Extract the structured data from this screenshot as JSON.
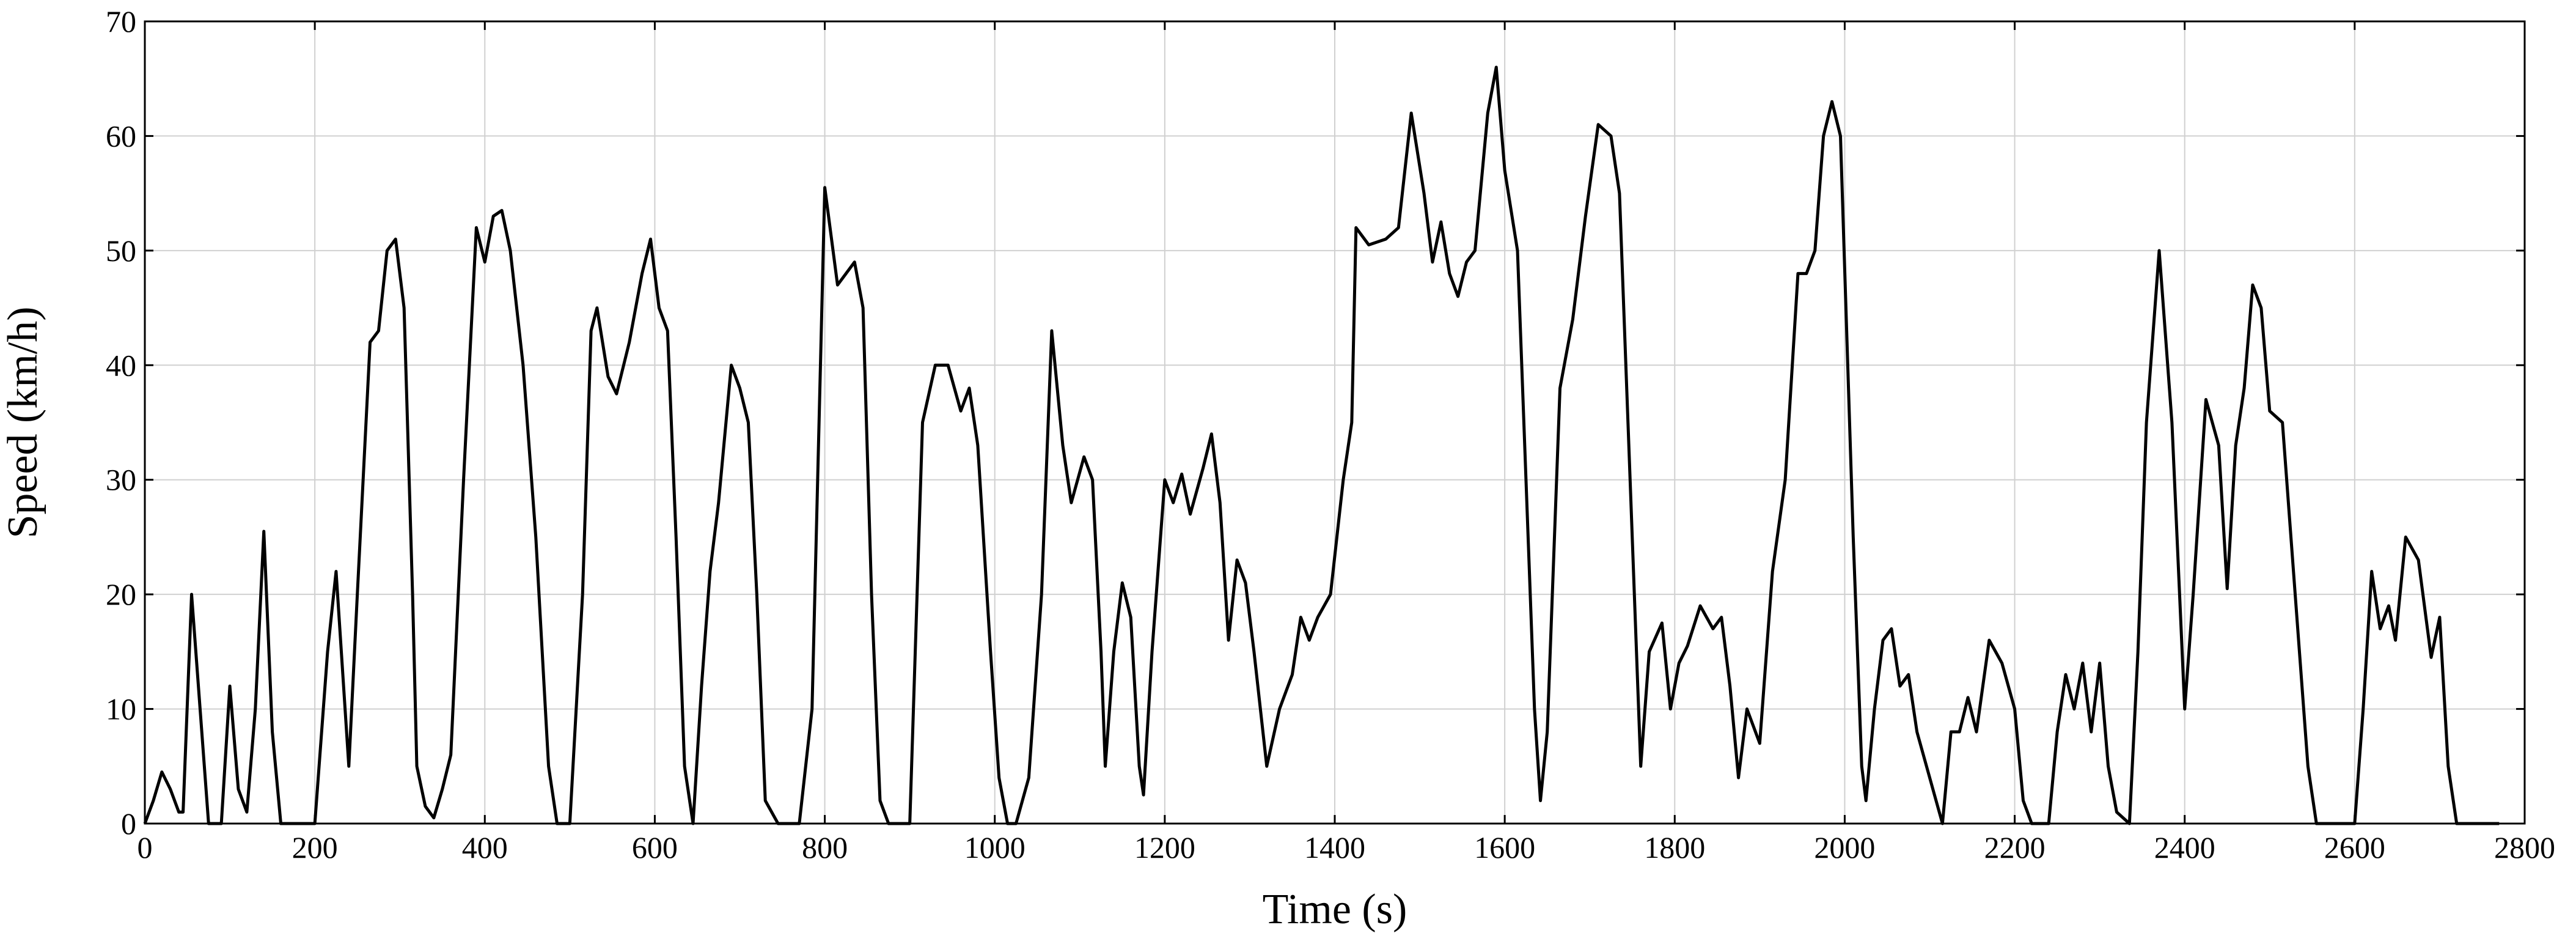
{
  "chart_data": {
    "type": "line",
    "xlabel": "Time (s)",
    "ylabel": "Speed (km/h)",
    "xlim": [
      0,
      2800
    ],
    "xticks": [
      0,
      200,
      400,
      600,
      800,
      1000,
      1200,
      1400,
      1600,
      1800,
      2000,
      2200,
      2400,
      2600,
      2800
    ],
    "ylim": [
      0,
      70
    ],
    "yticks": [
      0,
      10,
      20,
      30,
      40,
      50,
      60,
      70
    ],
    "grid": true,
    "color": "#000000",
    "x": [
      0,
      10,
      20,
      30,
      40,
      45,
      55,
      65,
      75,
      90,
      100,
      110,
      120,
      130,
      140,
      150,
      160,
      200,
      215,
      225,
      240,
      250,
      265,
      275,
      285,
      295,
      305,
      315,
      320,
      330,
      340,
      350,
      360,
      375,
      390,
      400,
      410,
      420,
      430,
      445,
      460,
      475,
      485,
      500,
      515,
      525,
      532,
      545,
      555,
      570,
      585,
      595,
      605,
      615,
      625,
      635,
      645,
      655,
      665,
      675,
      690,
      700,
      710,
      720,
      730,
      745,
      770,
      785,
      800,
      815,
      825,
      835,
      845,
      855,
      865,
      875,
      900,
      915,
      930,
      945,
      960,
      970,
      980,
      995,
      1005,
      1015,
      1025,
      1040,
      1055,
      1067,
      1080,
      1090,
      1105,
      1115,
      1125,
      1130,
      1140,
      1150,
      1160,
      1170,
      1175,
      1185,
      1200,
      1210,
      1220,
      1230,
      1245,
      1255,
      1265,
      1275,
      1285,
      1295,
      1305,
      1320,
      1335,
      1350,
      1360,
      1370,
      1380,
      1395,
      1410,
      1420,
      1425,
      1440,
      1460,
      1475,
      1490,
      1505,
      1515,
      1525,
      1535,
      1545,
      1555,
      1565,
      1580,
      1590,
      1600,
      1615,
      1625,
      1635,
      1642,
      1650,
      1665,
      1680,
      1695,
      1710,
      1725,
      1735,
      1745,
      1755,
      1760,
      1770,
      1785,
      1795,
      1805,
      1815,
      1830,
      1845,
      1855,
      1865,
      1875,
      1885,
      1900,
      1915,
      1930,
      1945,
      1955,
      1965,
      1975,
      1985,
      1995,
      2010,
      2020,
      2025,
      2035,
      2045,
      2055,
      2065,
      2075,
      2085,
      2100,
      2115,
      2125,
      2135,
      2145,
      2155,
      2170,
      2185,
      2200,
      2210,
      2220,
      2240,
      2250,
      2260,
      2270,
      2280,
      2290,
      2300,
      2310,
      2320,
      2335,
      2345,
      2355,
      2370,
      2385,
      2400,
      2410,
      2425,
      2440,
      2450,
      2460,
      2470,
      2480,
      2490,
      2500,
      2515,
      2530,
      2545,
      2555,
      2600,
      2610,
      2620,
      2630,
      2640,
      2648,
      2660,
      2675,
      2690,
      2700,
      2710,
      2720,
      2770
    ],
    "values": [
      0,
      2,
      4.5,
      3,
      1,
      1,
      20,
      10,
      0,
      0,
      12,
      3,
      1,
      10,
      25.5,
      8,
      0,
      0,
      15,
      22,
      5,
      20,
      42,
      43,
      50,
      51,
      45,
      20,
      5,
      1.5,
      0.5,
      3,
      6,
      30,
      52,
      49,
      53,
      53.5,
      50,
      40,
      25,
      5,
      0,
      0,
      20,
      43,
      45,
      39,
      37.5,
      42,
      48,
      51,
      45,
      43,
      25,
      5,
      0,
      12,
      22,
      28,
      40,
      38,
      35,
      20,
      2,
      0,
      0,
      10,
      55.5,
      47,
      48,
      49,
      45,
      20,
      2,
      0,
      0,
      35,
      40,
      40,
      36,
      38,
      33,
      15,
      4,
      0,
      0,
      4,
      20,
      43,
      33,
      28,
      32,
      30,
      15,
      5,
      15,
      21,
      18,
      5,
      2.5,
      15,
      30,
      28,
      30.5,
      27,
      31,
      34,
      28,
      16,
      23,
      21,
      15,
      5,
      10,
      13,
      18,
      16,
      18,
      20,
      30,
      35,
      52,
      50.5,
      51,
      52,
      62,
      55,
      49,
      52.5,
      48,
      46,
      49,
      50,
      62,
      66,
      57,
      50,
      30,
      10,
      2,
      8,
      38,
      44,
      53,
      61,
      60,
      55,
      35,
      15,
      5,
      15,
      17.5,
      10,
      14,
      15.5,
      19,
      17,
      18,
      12,
      4,
      10,
      7,
      22,
      30,
      48,
      48,
      50,
      60,
      63,
      60,
      25,
      5,
      2,
      10,
      16,
      17,
      12,
      13,
      8,
      4,
      0,
      8,
      8,
      11,
      8,
      16,
      14,
      10,
      2,
      0,
      0,
      8,
      13,
      10,
      14,
      8,
      14,
      5,
      1,
      0,
      15,
      35,
      50,
      35,
      10,
      20,
      37,
      33,
      20.5,
      33,
      38,
      47,
      45,
      36,
      35,
      20,
      5,
      0,
      0,
      10,
      22,
      17,
      19,
      16,
      25,
      23,
      14.5,
      18,
      5,
      0,
      0
    ]
  }
}
